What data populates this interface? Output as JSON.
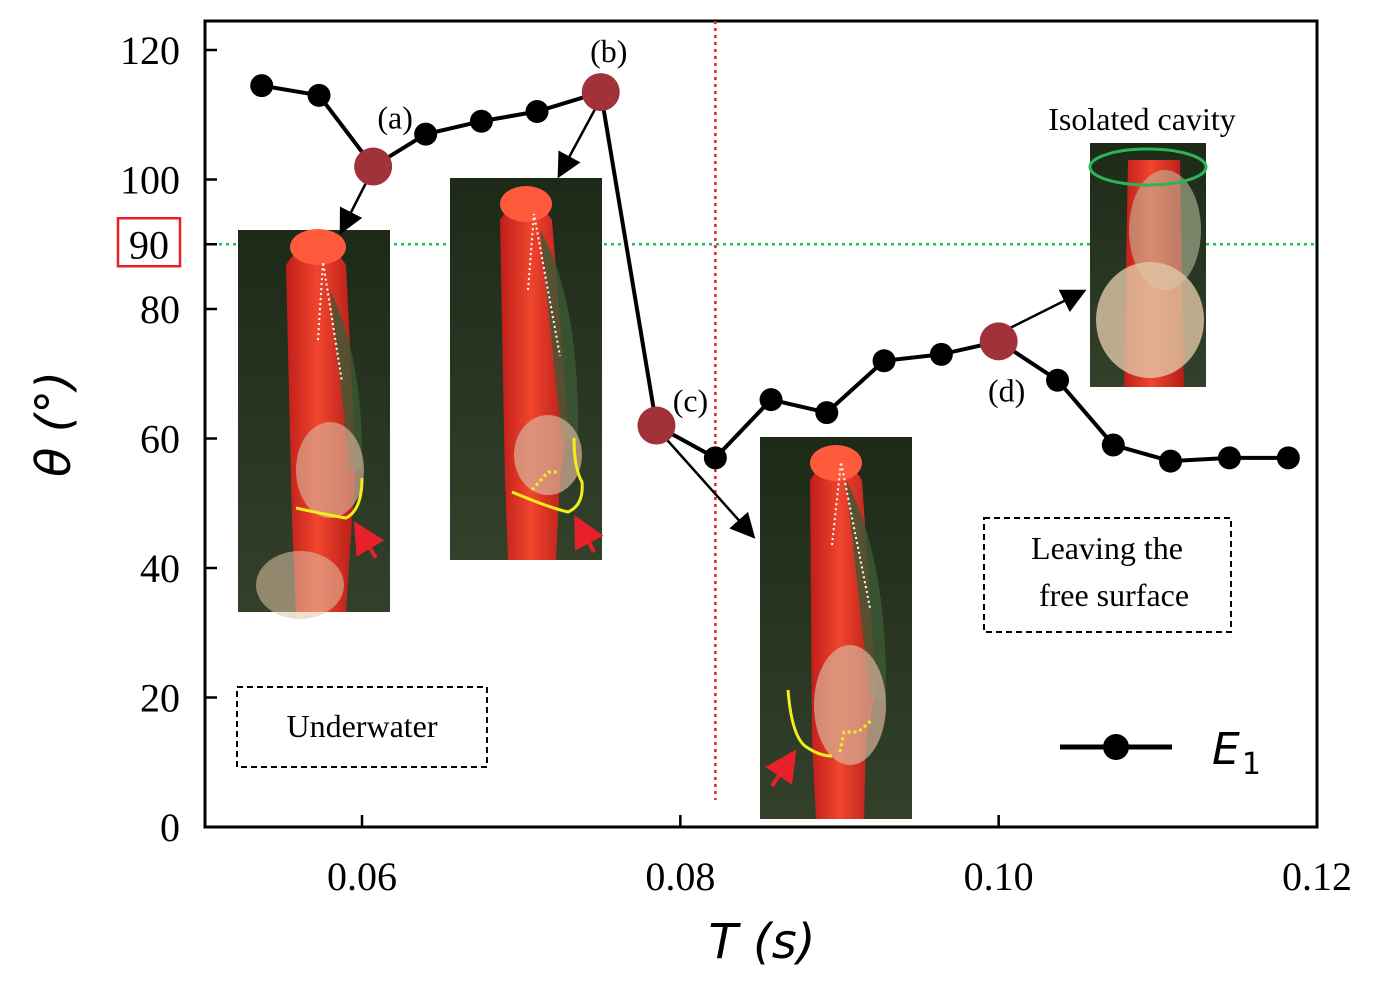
{
  "chart_data": {
    "type": "line",
    "xlabel": "T (s)",
    "ylabel": "θ (°)",
    "xlim": [
      0.05,
      0.12
    ],
    "ylim": [
      0,
      125
    ],
    "xticks": [
      "0.06",
      "0.08",
      "0.10",
      "0.12"
    ],
    "yticks": [
      "0",
      "20",
      "40",
      "60",
      "80",
      "100",
      "120"
    ],
    "highlighted_ytick": "90",
    "reference_lines": {
      "horizontal_y": 90,
      "vertical_x": 0.0822
    },
    "series": [
      {
        "name": "E1",
        "legend_main": "E",
        "legend_sub": "1",
        "x": [
          0.0537,
          0.0573,
          0.0607,
          0.064,
          0.0675,
          0.071,
          0.075,
          0.0785,
          0.0822,
          0.0857,
          0.0892,
          0.0928,
          0.0964,
          0.1,
          0.1037,
          0.1072,
          0.1108,
          0.1145,
          0.1182
        ],
        "y": [
          114.5,
          113,
          102,
          107,
          109,
          110.5,
          113.5,
          62,
          57,
          66,
          64,
          72,
          73,
          75,
          69,
          59,
          56.5,
          57,
          57
        ]
      }
    ],
    "highlighted_points": [
      {
        "label": "(a)",
        "x": 0.0607,
        "y": 102
      },
      {
        "label": "(b)",
        "x": 0.075,
        "y": 113.5
      },
      {
        "label": "(c)",
        "x": 0.0785,
        "y": 62
      },
      {
        "label": "(d)",
        "x": 0.1,
        "y": 75
      }
    ],
    "annotations": {
      "underwater": "Underwater",
      "leaving_line1": "Leaving the",
      "leaving_line2": "free surface",
      "isolated": "Isolated cavity"
    },
    "colors": {
      "highlight_marker": "#a1323a",
      "series": "#000000",
      "horizontal_ref": "#22c05a",
      "vertical_ref": "#e8202a",
      "tick_box": "#e8202a",
      "photo_body": "#e8382c",
      "photo_bg": "#2b3a24",
      "yellow_line": "#f2ee1a",
      "cavity_ellipse": "#2ab556"
    }
  }
}
